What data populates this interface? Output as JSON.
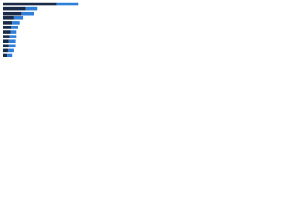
{
  "chart_data": {
    "type": "stacked-barh",
    "categories": [
      null,
      null,
      null,
      null,
      null,
      null,
      null,
      null,
      null,
      null,
      null,
      null
    ],
    "series": [
      {
        "color": "#1b2a47",
        "values": [
          69,
          29,
          24,
          14,
          12,
          11,
          10,
          9,
          8,
          8,
          7,
          6
        ]
      },
      {
        "color": "#2f7ed8",
        "values": [
          29,
          16,
          16,
          12,
          10,
          9,
          8,
          9,
          8,
          8,
          7,
          6
        ]
      }
    ],
    "xlim": [
      0,
      100
    ]
  }
}
